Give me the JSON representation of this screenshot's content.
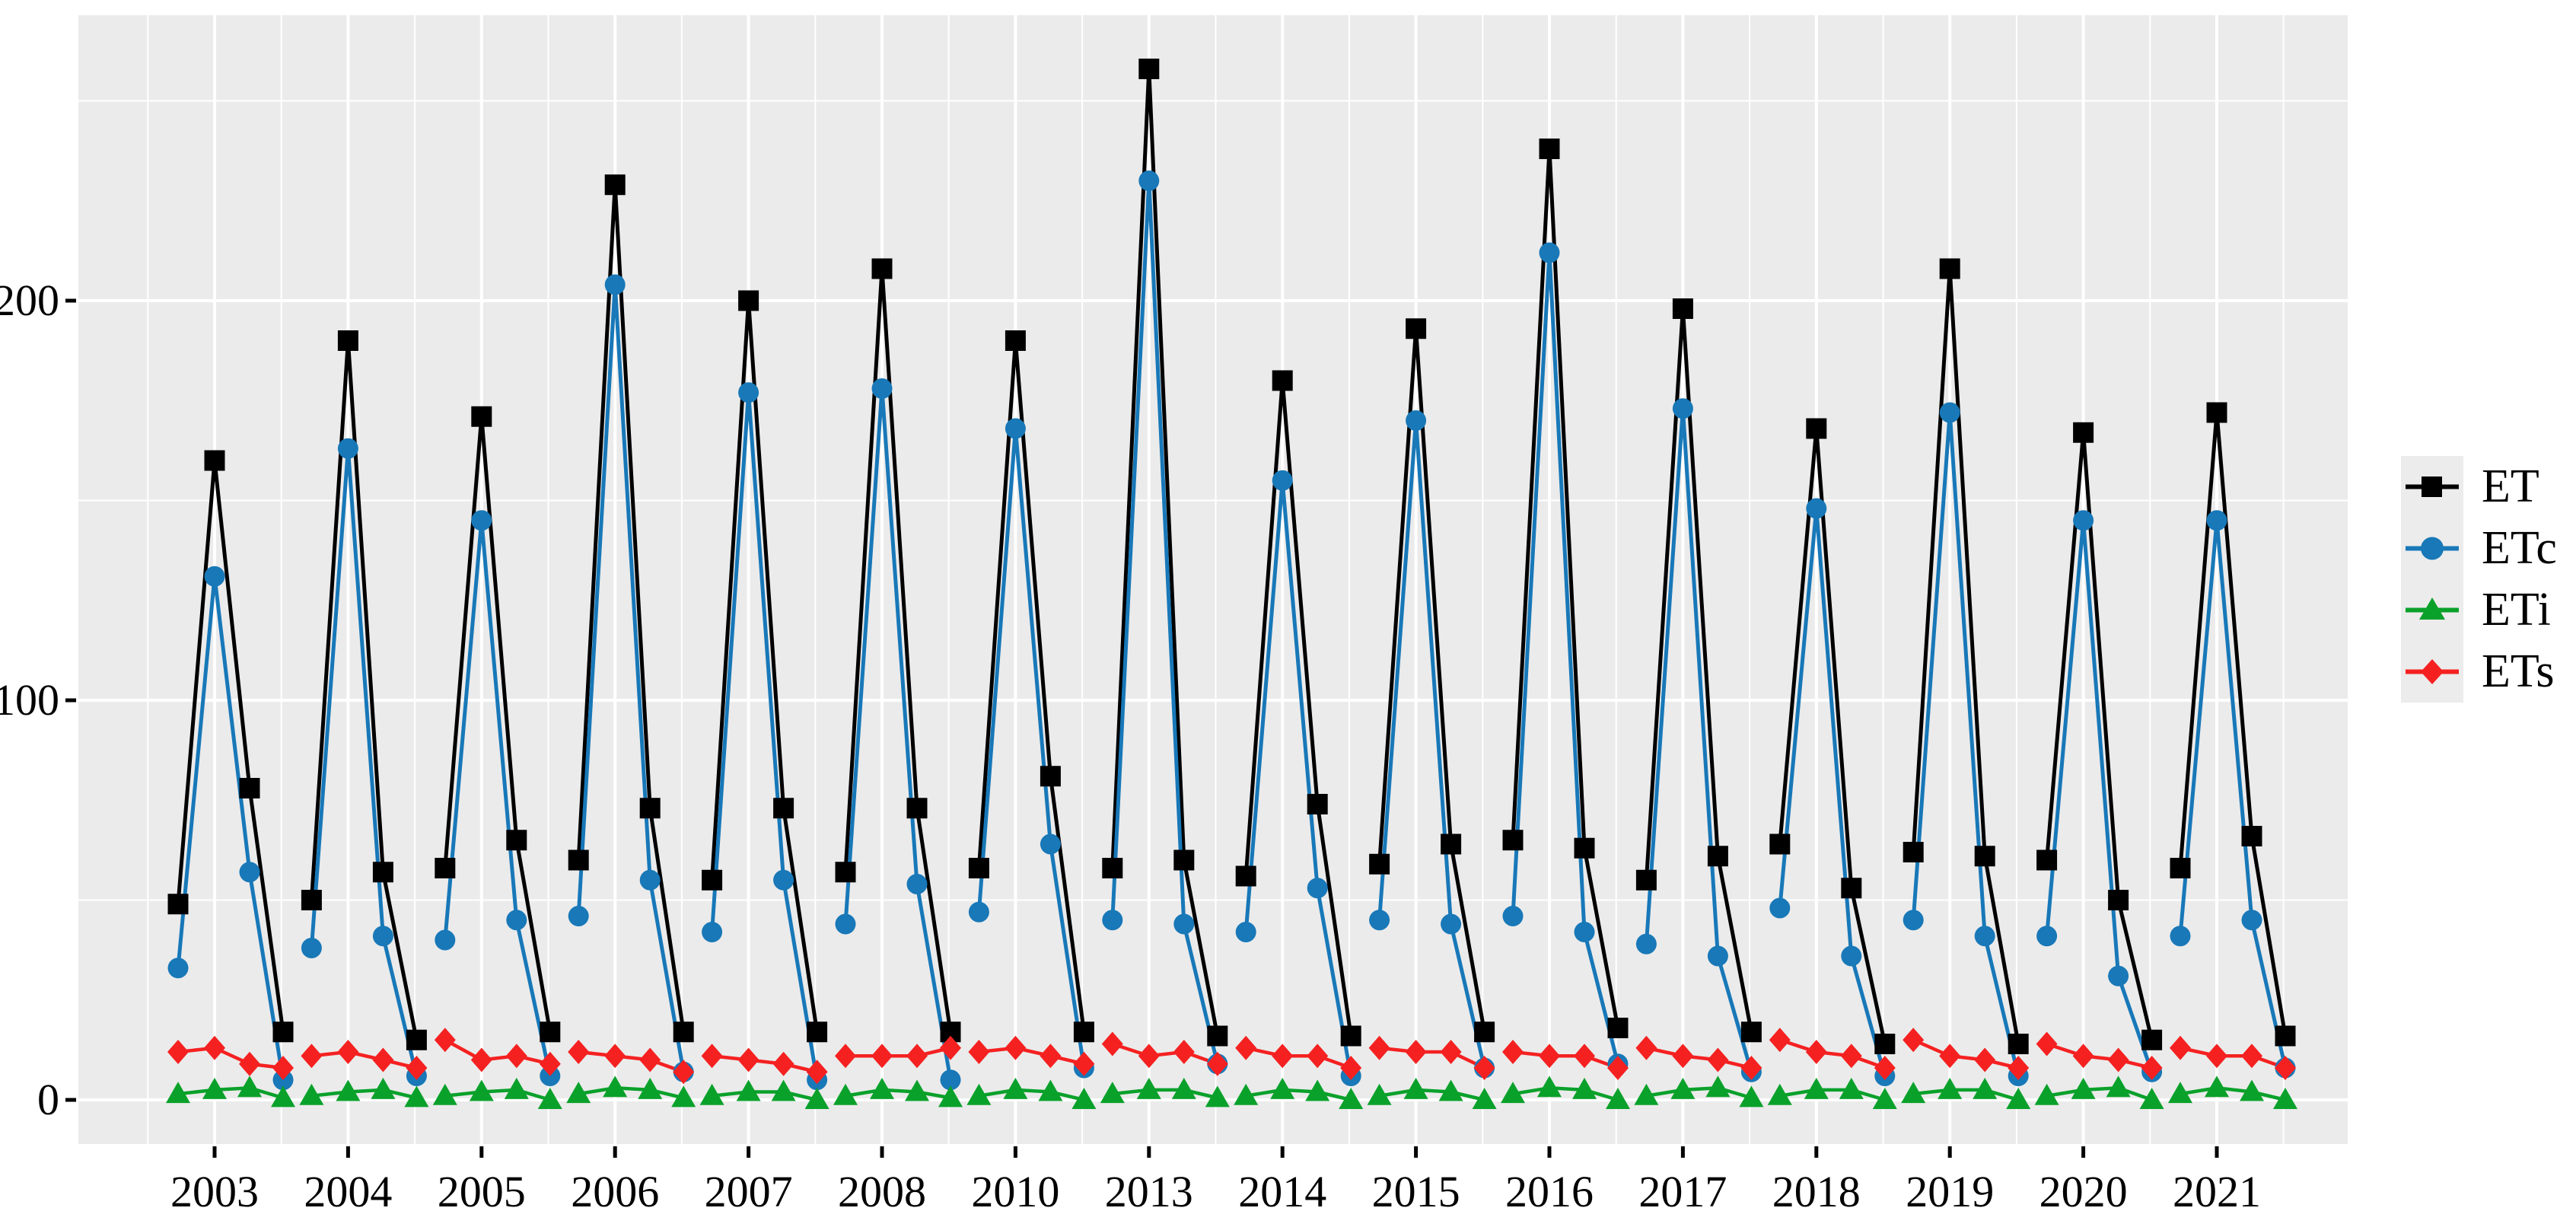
{
  "chart_data": {
    "type": "line",
    "title": "",
    "xlabel": "",
    "ylabel": "",
    "x_axis": {
      "tick_labels": [
        "2003",
        "2004",
        "2005",
        "2006",
        "2007",
        "2008",
        "2010",
        "2013",
        "2014",
        "2015",
        "2016",
        "2017",
        "2018",
        "2019",
        "2020",
        "2021"
      ]
    },
    "y_axis": {
      "tick_labels": [
        "0",
        "100",
        "200"
      ],
      "tick_values": [
        0,
        100,
        200
      ],
      "minor_tick_values": [
        50,
        150,
        250
      ]
    },
    "ylim": [
      -11,
      271
    ],
    "grid": "white major and minor gridlines on grey panel",
    "panel_background": "#EBEBEB",
    "legend_position": "right",
    "points_per_group": 4,
    "series": [
      {
        "name": "ET",
        "marker": "square",
        "color": "#000000",
        "groups": [
          [
            49,
            160,
            78,
            17
          ],
          [
            50,
            190,
            57,
            15
          ],
          [
            58,
            171,
            65,
            17
          ],
          [
            60,
            229,
            73,
            17
          ],
          [
            55,
            200,
            73,
            17
          ],
          [
            57,
            208,
            73,
            17
          ],
          [
            58,
            190,
            81,
            17
          ],
          [
            58,
            258,
            60,
            16
          ],
          [
            56,
            180,
            74,
            16
          ],
          [
            59,
            193,
            64,
            17
          ],
          [
            65,
            238,
            63,
            18
          ],
          [
            55,
            198,
            61,
            17
          ],
          [
            64,
            168,
            53,
            14
          ],
          [
            62,
            208,
            61,
            14
          ],
          [
            60,
            167,
            50,
            15
          ],
          [
            58,
            172,
            66,
            16
          ]
        ]
      },
      {
        "name": "ETc",
        "marker": "circle",
        "color": "#1878B8",
        "groups": [
          [
            33,
            131,
            57,
            5
          ],
          [
            38,
            163,
            41,
            6
          ],
          [
            40,
            145,
            45,
            6
          ],
          [
            46,
            204,
            55,
            7
          ],
          [
            42,
            177,
            55,
            5
          ],
          [
            44,
            178,
            54,
            5
          ],
          [
            47,
            168,
            64,
            8
          ],
          [
            45,
            230,
            44,
            9
          ],
          [
            42,
            155,
            53,
            6
          ],
          [
            45,
            170,
            44,
            8
          ],
          [
            46,
            212,
            42,
            9
          ],
          [
            39,
            173,
            36,
            7
          ],
          [
            48,
            148,
            36,
            6
          ],
          [
            45,
            172,
            41,
            6
          ],
          [
            41,
            145,
            31,
            7
          ],
          [
            41,
            145,
            45,
            8
          ]
        ]
      },
      {
        "name": "ETi",
        "marker": "triangle",
        "color": "#0AA12B",
        "groups": [
          [
            1.5,
            2.5,
            3,
            0.5
          ],
          [
            1,
            2,
            2.5,
            0.5
          ],
          [
            1,
            2,
            2.5,
            0
          ],
          [
            1.5,
            3,
            2.5,
            0.5
          ],
          [
            1,
            2,
            2,
            0
          ],
          [
            1,
            2.5,
            2,
            0.5
          ],
          [
            1,
            2.5,
            2,
            0
          ],
          [
            1.5,
            2.5,
            2.5,
            0.5
          ],
          [
            1,
            2.5,
            2,
            0
          ],
          [
            1,
            2.5,
            2,
            0
          ],
          [
            1.5,
            3,
            2.5,
            0
          ],
          [
            1,
            2.5,
            3,
            0.5
          ],
          [
            1,
            2.5,
            2.5,
            0
          ],
          [
            1.5,
            2.5,
            2.5,
            0
          ],
          [
            1,
            2.5,
            3,
            0
          ],
          [
            1.5,
            3,
            2,
            0
          ]
        ]
      },
      {
        "name": "ETs",
        "marker": "diamond",
        "color": "#F52121",
        "groups": [
          [
            12,
            13,
            9,
            8
          ],
          [
            11,
            12,
            10,
            8
          ],
          [
            15,
            10,
            11,
            9
          ],
          [
            12,
            11,
            10,
            7
          ],
          [
            11,
            10,
            9,
            7
          ],
          [
            11,
            11,
            11,
            13
          ],
          [
            12,
            13,
            11,
            9
          ],
          [
            14,
            11,
            12,
            9
          ],
          [
            13,
            11,
            11,
            8
          ],
          [
            13,
            12,
            12,
            8
          ],
          [
            12,
            11,
            11,
            8
          ],
          [
            13,
            11,
            10,
            8
          ],
          [
            15,
            12,
            11,
            8
          ],
          [
            15,
            11,
            10,
            8
          ],
          [
            14,
            11,
            10,
            8
          ],
          [
            13,
            11,
            11,
            8
          ]
        ]
      }
    ]
  }
}
